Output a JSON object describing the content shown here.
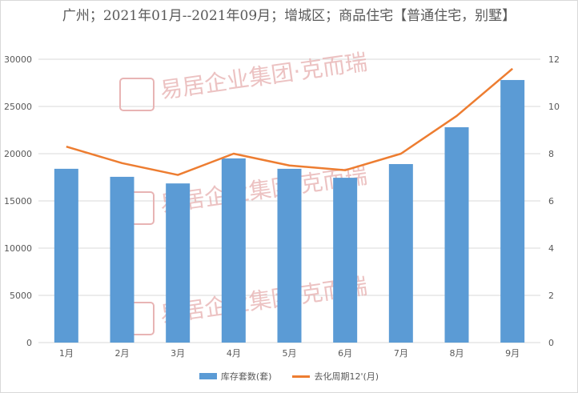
{
  "chart_data": {
    "type": "bar",
    "title": "广州；2021年01月--2021年09月；增城区；商品住宅【普通住宅，别墅】",
    "categories": [
      "1月",
      "2月",
      "3月",
      "4月",
      "5月",
      "6月",
      "7月",
      "8月",
      "9月"
    ],
    "series": [
      {
        "name": "库存套数(套)",
        "type": "bar",
        "axis": "left",
        "color": "#5b9bd5",
        "values": [
          18400,
          17550,
          16850,
          19500,
          18400,
          17450,
          18900,
          22800,
          27800
        ]
      },
      {
        "name": "去化周期12'(月)",
        "type": "line",
        "axis": "right",
        "color": "#ed7d31",
        "values": [
          8.3,
          7.6,
          7.1,
          8.0,
          7.5,
          7.3,
          8.0,
          9.6,
          11.6
        ]
      }
    ],
    "ylim_left": [
      0,
      30000
    ],
    "yticks_left": [
      "0",
      "5000",
      "10000",
      "15000",
      "20000",
      "25000",
      "30000"
    ],
    "ylim_right": [
      0,
      12
    ],
    "yticks_right": [
      "0",
      "2",
      "4",
      "6",
      "8",
      "10",
      "12"
    ],
    "grid": true,
    "legend_position": "bottom"
  },
  "watermark": {
    "text": "易居企业集团·克而瑞",
    "color": "#e8b4b4"
  }
}
